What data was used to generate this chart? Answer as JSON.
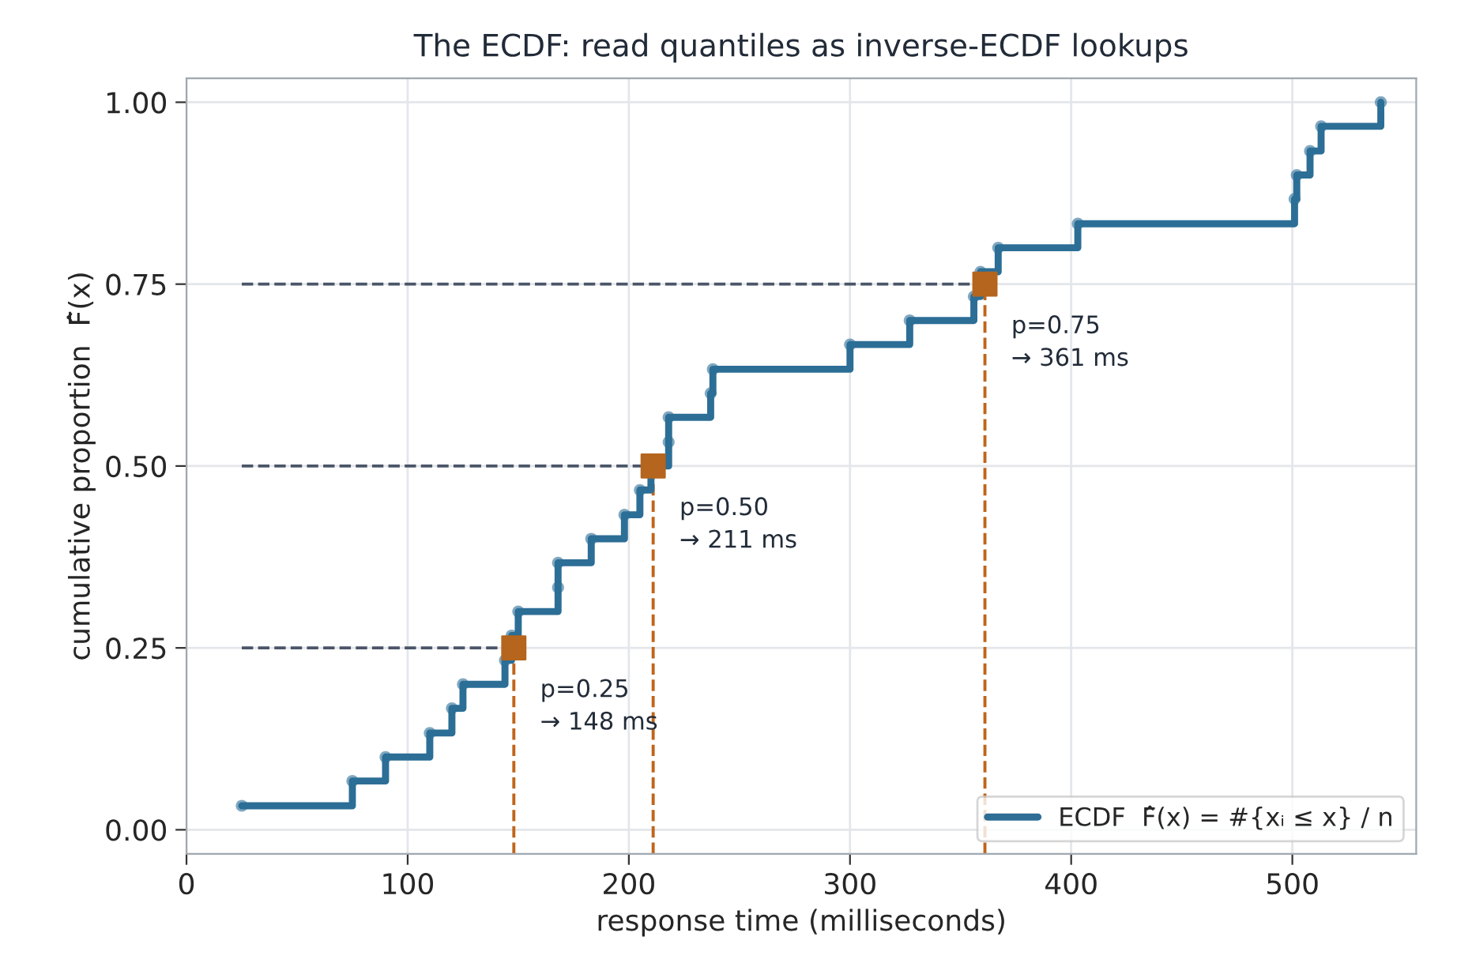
{
  "chart_data": {
    "type": "step",
    "title": "The ECDF: read quantiles as inverse-ECDF lookups",
    "xlabel": "response time (milliseconds)",
    "ylabel": "cumulative proportion  F̂(x)",
    "xlim": [
      0,
      556
    ],
    "xticks": [
      0,
      100,
      200,
      300,
      400,
      500
    ],
    "ylim": [
      -0.033,
      1.033
    ],
    "yticks": [
      {
        "value": 0,
        "label": "0.00"
      },
      {
        "value": 0.25,
        "label": "0.25"
      },
      {
        "value": 0.5,
        "label": "0.50"
      },
      {
        "value": 0.75,
        "label": "0.75"
      },
      {
        "value": 1,
        "label": "1.00"
      }
    ],
    "grid": true,
    "legend": "bottom right",
    "series": [
      {
        "name": "ECDF  F̂(x) = #{xᵢ ≤ x} / n",
        "color": "#2c6e96",
        "marker": "circle",
        "x": [
          25,
          75,
          90,
          110,
          120,
          125,
          144,
          147,
          150,
          168,
          168,
          183,
          198,
          205,
          210,
          218,
          218,
          237,
          238,
          300,
          327,
          356,
          359,
          367,
          403,
          501,
          502,
          508,
          513,
          540
        ],
        "values": [
          0.033,
          0.067,
          0.1,
          0.133,
          0.167,
          0.2,
          0.233,
          0.267,
          0.3,
          0.333,
          0.367,
          0.4,
          0.433,
          0.467,
          0.5,
          0.533,
          0.567,
          0.6,
          0.633,
          0.667,
          0.7,
          0.733,
          0.767,
          0.8,
          0.833,
          0.867,
          0.9,
          0.933,
          0.967,
          1.0
        ]
      },
      {
        "type": "line",
        "color": "#4a5568",
        "line_style": "dashed",
        "x": [
          25,
          148
        ],
        "values": [
          0.25,
          0.25
        ]
      },
      {
        "type": "line",
        "color": "#4a5568",
        "line_style": "dashed",
        "x": [
          25,
          211
        ],
        "values": [
          0.5,
          0.5
        ]
      },
      {
        "type": "line",
        "color": "#4a5568",
        "line_style": "dashed",
        "x": [
          25,
          361
        ],
        "values": [
          0.75,
          0.75
        ]
      },
      {
        "type": "line",
        "color": "#c0651a",
        "line_style": "dashed",
        "x": [
          148,
          148
        ],
        "values": [
          -0.033,
          0.25
        ]
      },
      {
        "type": "line",
        "color": "#c0651a",
        "line_style": "dashed",
        "x": [
          211,
          211
        ],
        "values": [
          -0.033,
          0.5
        ]
      },
      {
        "type": "line",
        "color": "#c0651a",
        "line_style": "dashed",
        "x": [
          361,
          361
        ],
        "values": [
          -0.033,
          0.75
        ]
      },
      {
        "type": "scatter",
        "color": "#b5651d",
        "marker": "square",
        "x": [
          148,
          211,
          361
        ],
        "values": [
          0.25,
          0.5,
          0.75
        ]
      }
    ],
    "annotations": [
      {
        "text": "p=0.25\n→ 148 ms",
        "x": 148,
        "y": 0.25
      },
      {
        "text": "p=0.50\n→ 211 ms",
        "x": 211,
        "y": 0.5
      },
      {
        "text": "p=0.75\n→ 361 ms",
        "x": 361,
        "y": 0.75
      }
    ]
  }
}
